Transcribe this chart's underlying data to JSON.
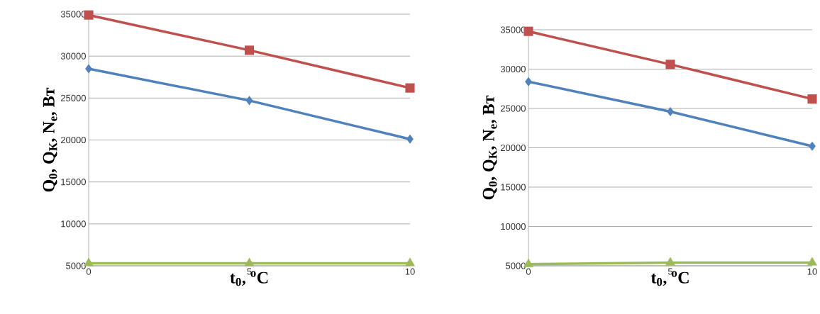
{
  "chart_data": [
    {
      "type": "line",
      "xlabel": "t$_{0}$, $^{o}$C",
      "ylabel": "Q$_{0}$, Q$_{К}$, N$_{e}$, Вт",
      "x": [
        0,
        5,
        10
      ],
      "xlim": [
        0,
        10
      ],
      "xticks": [
        0,
        5,
        10
      ],
      "ylim": [
        5000,
        35000
      ],
      "yticks": [
        5000,
        10000,
        15000,
        20000,
        25000,
        30000,
        35000
      ],
      "grid": "y",
      "line_style": "solid",
      "series": [
        {
          "color": "#c0504d",
          "marker": "square",
          "values": [
            34900,
            30700,
            26200
          ]
        },
        {
          "color": "#4f81bd",
          "marker": "diamond",
          "values": [
            28500,
            24700,
            20100
          ]
        },
        {
          "color": "#9bbb59",
          "marker": "triangle",
          "values": [
            5300,
            5300,
            5300
          ]
        }
      ]
    },
    {
      "type": "line",
      "xlabel": "t$_{0}$, $^{o}$C",
      "ylabel": "Q$_{0}$, Q$_{К}$, N$_{e}$, Вт",
      "x": [
        0,
        5,
        10
      ],
      "xlim": [
        0,
        10
      ],
      "xticks": [
        0,
        5,
        10
      ],
      "ylim": [
        5000,
        35000
      ],
      "yticks": [
        5000,
        10000,
        15000,
        20000,
        25000,
        30000,
        35000
      ],
      "grid": "y",
      "line_style": "solid",
      "series": [
        {
          "color": "#c0504d",
          "marker": "square",
          "values": [
            34800,
            30600,
            26200
          ]
        },
        {
          "color": "#4f81bd",
          "marker": "diamond",
          "values": [
            28400,
            24600,
            20200
          ]
        },
        {
          "color": "#9bbb59",
          "marker": "triangle",
          "values": [
            5200,
            5400,
            5400
          ]
        }
      ]
    }
  ]
}
